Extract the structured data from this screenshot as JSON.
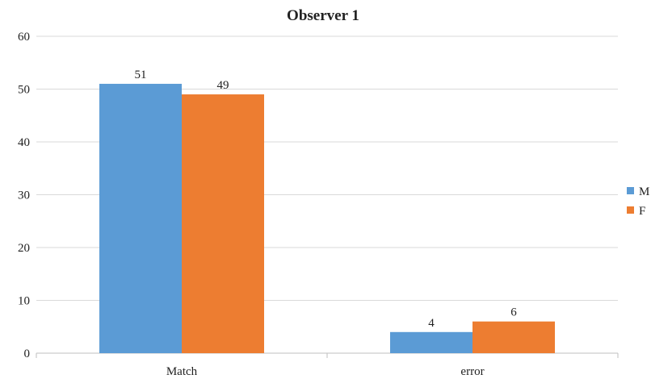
{
  "chart_data": {
    "type": "bar",
    "title": "Observer 1",
    "categories": [
      "Match",
      "error"
    ],
    "series": [
      {
        "name": "M",
        "values": [
          51,
          4
        ],
        "color": "#5B9BD5"
      },
      {
        "name": "F",
        "values": [
          49,
          6
        ],
        "color": "#ED7D31"
      }
    ],
    "xlabel": "",
    "ylabel": "",
    "ylim": [
      0,
      60
    ],
    "yticks": [
      0,
      10,
      20,
      30,
      40,
      50,
      60
    ],
    "grid": true,
    "legend_position": "right",
    "data_labels": true
  }
}
